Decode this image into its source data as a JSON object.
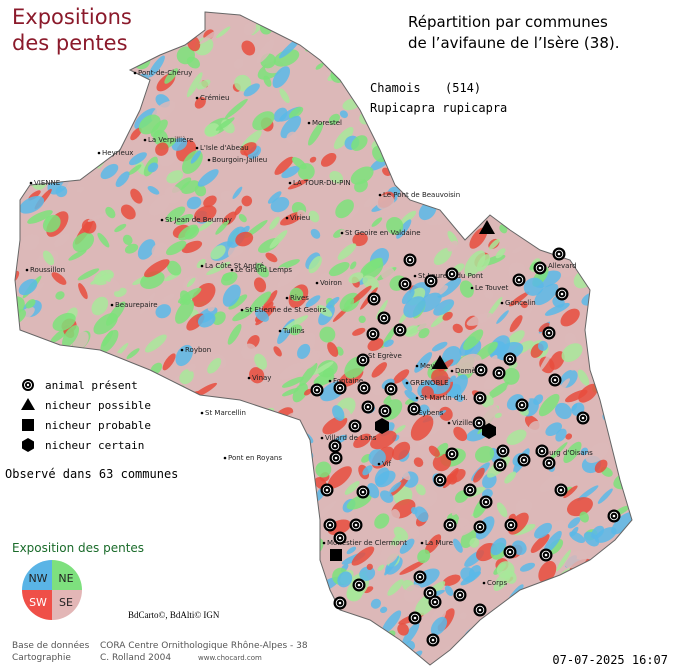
{
  "title": [
    "Expositions",
    "des pentes"
  ],
  "heading": [
    "Répartition par communes",
    "de l’avifaune de l’Isère (38)."
  ],
  "species": {
    "common": "Chamois",
    "code": "(514)",
    "latin": "Rupicapra rupicapra"
  },
  "legend": [
    "animal présent",
    "nicheur possible",
    "nicheur probable",
    "nicheur certain"
  ],
  "observed": "Observé dans 63 communes",
  "exposure": {
    "title": "Exposition des pentes",
    "quadrants": [
      "NW",
      "NE",
      "SW",
      "SE"
    ]
  },
  "copyright": "BdCarto©, BdAlti© IGN",
  "footer": {
    "labels": [
      "Base de données",
      "Cartographie"
    ],
    "values": [
      "CORA Centre Ornithologique Rhône-Alpes - 38",
      "C. Rolland 2004"
    ],
    "url": "www.chocard.com"
  },
  "date": "07-07-2025 16:07",
  "towns": [
    "Pont-de-Chéruy",
    "Crémieu",
    "Morestel",
    "La Verpillière",
    "L'Isle d'Abeau",
    "Heyrieux",
    "Bourgoin-Jallieu",
    "LA TOUR-DU-PIN",
    "Le Pont de Beauvoisin",
    "VIENNE",
    "St Jean de Bournay",
    "Virieu",
    "St Geoire en Valdaine",
    "Roussillon",
    "La Côte St André",
    "Le Grand Lemps",
    "Beaurepaire",
    "St Etienne de St Geoirs",
    "Rives",
    "Voiron",
    "St Laurent du Pont",
    "Le Touvet",
    "Goncelin",
    "Allevard",
    "Tullins",
    "Roybon",
    "Vinay",
    "St Egrève",
    "Meylan",
    "Fontaine",
    "GRENOBLE",
    "Domène",
    "St Marcellin",
    "Eybens",
    "Vizille",
    "Villard de Lans",
    "Pont en Royans",
    "Bourg d'Oisans",
    "Vif",
    "Monestier de Clermont",
    "La Mure",
    "Corps",
    "St Martin d'H."
  ]
}
